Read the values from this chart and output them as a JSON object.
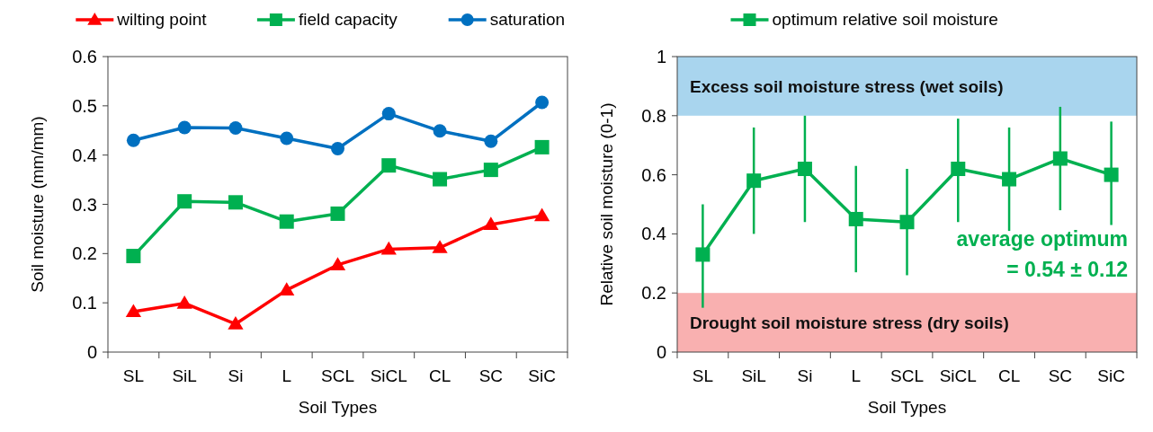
{
  "chart_data": [
    {
      "type": "line",
      "xlabel": "Soil Types",
      "ylabel": "Soil moisture (mm/mm)",
      "categories": [
        "SL",
        "SiL",
        "Si",
        "L",
        "SCL",
        "SiCL",
        "CL",
        "SC",
        "SiC"
      ],
      "ylim": [
        0,
        0.6
      ],
      "yticks": [
        0,
        0.1,
        0.2,
        0.3,
        0.4,
        0.5,
        0.6
      ],
      "grid": false,
      "legend": "top",
      "line_style": "solid",
      "series": [
        {
          "name": "wilting point",
          "color": "#ff0000",
          "marker": "triangle",
          "values": [
            0.082,
            0.099,
            0.057,
            0.126,
            0.177,
            0.209,
            0.212,
            0.259,
            0.277
          ]
        },
        {
          "name": "field capacity",
          "color": "#00b050",
          "marker": "square",
          "values": [
            0.195,
            0.306,
            0.304,
            0.265,
            0.281,
            0.379,
            0.351,
            0.37,
            0.416
          ]
        },
        {
          "name": "saturation",
          "color": "#0070c0",
          "marker": "circle",
          "values": [
            0.43,
            0.456,
            0.455,
            0.434,
            0.413,
            0.484,
            0.449,
            0.428,
            0.507
          ]
        }
      ]
    },
    {
      "type": "line",
      "xlabel": "Soil Types",
      "ylabel": "Relative soil moisture (0-1)",
      "categories": [
        "SL",
        "SiL",
        "Si",
        "L",
        "SCL",
        "SiCL",
        "CL",
        "SC",
        "SiC"
      ],
      "ylim": [
        0,
        1
      ],
      "yticks": [
        0,
        0.2,
        0.4,
        0.6,
        0.8,
        1
      ],
      "grid": false,
      "legend": "top",
      "line_style": "solid",
      "marker": "square",
      "series": [
        {
          "name": "optimum relative soil moisture",
          "color": "#00b050",
          "values": [
            0.33,
            0.58,
            0.62,
            0.45,
            0.44,
            0.62,
            0.585,
            0.655,
            0.6
          ],
          "errors": [
            [
              0.15,
              0.5
            ],
            [
              0.4,
              0.76
            ],
            [
              0.44,
              0.8
            ],
            [
              0.27,
              0.63
            ],
            [
              0.26,
              0.62
            ],
            [
              0.44,
              0.79
            ],
            [
              0.41,
              0.76
            ],
            [
              0.48,
              0.83
            ],
            [
              0.43,
              0.78
            ]
          ]
        }
      ],
      "bands": [
        {
          "axis": "y",
          "from": 0.8,
          "to": 1,
          "label": "Excess soil moisture stress (wet soils)",
          "color": "#a9d5ee"
        },
        {
          "axis": "y",
          "from": 0,
          "to": 0.2,
          "label": "Drought soil moisture stress (dry soils)",
          "color": "#f9b0b0"
        }
      ],
      "annotations": [
        "average optimum",
        "= 0.54 ± 0.12"
      ]
    }
  ]
}
